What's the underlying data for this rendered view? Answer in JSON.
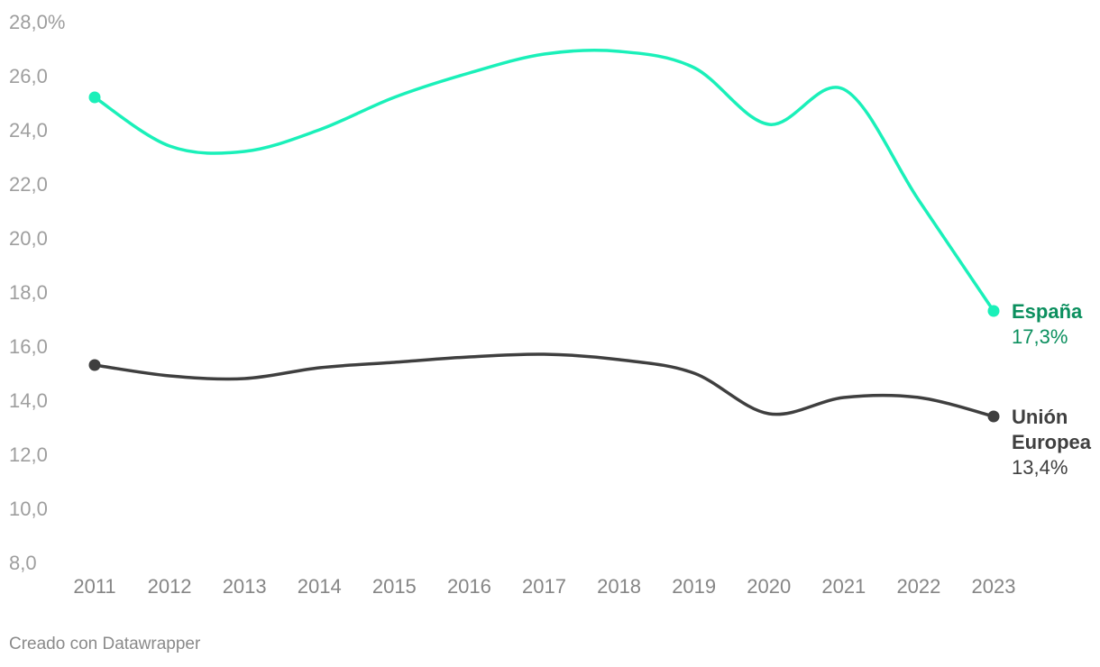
{
  "chart_data": {
    "type": "line",
    "x": [
      "2011",
      "2012",
      "2013",
      "2014",
      "2015",
      "2016",
      "2017",
      "2018",
      "2019",
      "2020",
      "2021",
      "2022",
      "2023"
    ],
    "ylim": [
      8.0,
      28.0
    ],
    "yticks": [
      "28,0%",
      "26,0",
      "24,0",
      "22,0",
      "20,0",
      "18,0",
      "16,0",
      "14,0",
      "12,0",
      "10,0",
      "8,0"
    ],
    "grid": false,
    "series": [
      {
        "name": "España",
        "label_lines": [
          "España"
        ],
        "end_label": "17,3%",
        "color": "#1af0b9",
        "label_color": "#0b8f5e",
        "values": [
          25.2,
          23.4,
          23.2,
          24.0,
          25.2,
          26.1,
          26.8,
          26.9,
          26.3,
          24.2,
          25.5,
          21.4,
          17.3
        ]
      },
      {
        "name": "Unión Europea",
        "label_lines": [
          "Unión",
          "Europea"
        ],
        "end_label": "13,4%",
        "color": "#3f3f3f",
        "label_color": "#3f3f3f",
        "values": [
          15.3,
          14.9,
          14.8,
          15.2,
          15.4,
          15.6,
          15.7,
          15.5,
          15.0,
          13.5,
          14.1,
          14.1,
          13.4
        ]
      }
    ]
  },
  "footer": "Creado con Datawrapper"
}
